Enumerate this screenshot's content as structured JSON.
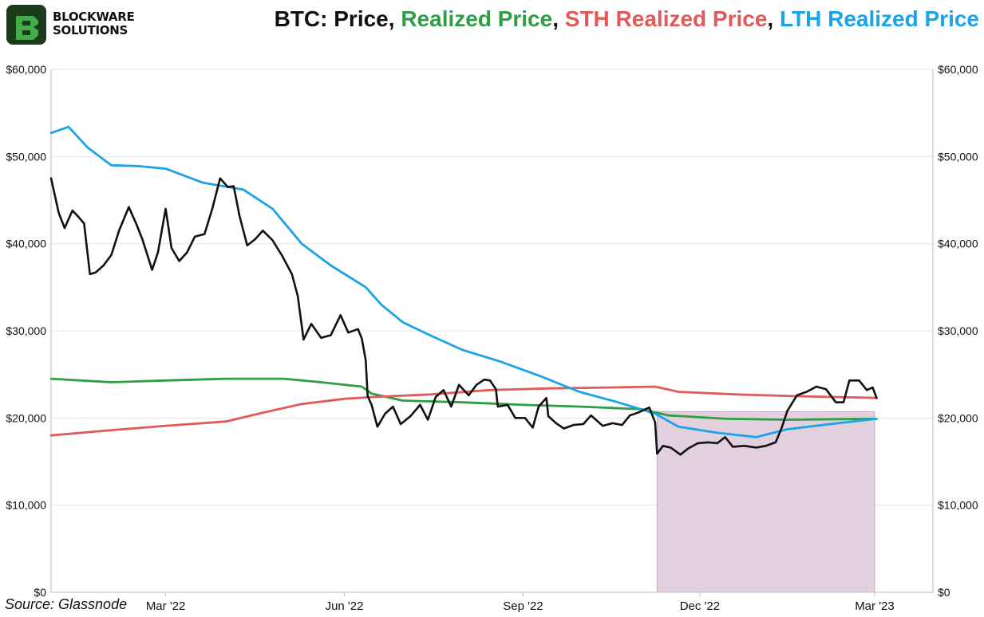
{
  "brand": {
    "line1": "BLOCKWARE",
    "line2": "SOLUTIONS",
    "colors": {
      "logo_dark": "#1c3a1c",
      "logo_green": "#3fae49"
    }
  },
  "title": {
    "segments": [
      {
        "text": "BTC: Price",
        "color": "#111111"
      },
      {
        "text": ", ",
        "color": "#111111"
      },
      {
        "text": "Realized Price",
        "color": "#2e9e45"
      },
      {
        "text": ", ",
        "color": "#111111"
      },
      {
        "text": "STH Realized Price",
        "color": "#e05a5a"
      },
      {
        "text": ", ",
        "color": "#111111"
      },
      {
        "text": "LTH Realized Price",
        "color": "#1aa3e8"
      }
    ]
  },
  "source": "Source: Glassnode",
  "chart_data": {
    "type": "line",
    "grid": true,
    "y_axis": {
      "ticks": [
        0,
        10000,
        20000,
        30000,
        40000,
        50000,
        60000
      ],
      "tick_labels": [
        "$0",
        "$10,000",
        "$20,000",
        "$30,000",
        "$40,000",
        "$50,000",
        "$60,000"
      ],
      "ylim": [
        0,
        60000
      ],
      "mirrored_right": true
    },
    "x_axis": {
      "range": [
        "2022-01-01",
        "2023-03-31"
      ],
      "ticks": [
        "2022-03-01",
        "2022-06-01",
        "2022-09-01",
        "2022-12-01",
        "2023-03-01"
      ],
      "tick_labels": [
        "Mar '22",
        "Jun '22",
        "Sep '22",
        "Dec '22",
        "Mar '23"
      ]
    },
    "shaded_region": {
      "x": [
        "2022-11-09",
        "2023-03-01"
      ],
      "color": "#e2d0de",
      "edge": "#c7a9c2"
    },
    "series": [
      {
        "name": "Price",
        "color": "#111111",
        "points": [
          [
            "2022-01-01",
            47500
          ],
          [
            "2022-01-05",
            43500
          ],
          [
            "2022-01-08",
            41800
          ],
          [
            "2022-01-12",
            43800
          ],
          [
            "2022-01-15",
            43100
          ],
          [
            "2022-01-18",
            42300
          ],
          [
            "2022-01-21",
            36500
          ],
          [
            "2022-01-24",
            36700
          ],
          [
            "2022-01-28",
            37500
          ],
          [
            "2022-02-01",
            38700
          ],
          [
            "2022-02-05",
            41500
          ],
          [
            "2022-02-10",
            44200
          ],
          [
            "2022-02-14",
            42200
          ],
          [
            "2022-02-17",
            40500
          ],
          [
            "2022-02-22",
            37000
          ],
          [
            "2022-02-25",
            39000
          ],
          [
            "2022-03-01",
            44000
          ],
          [
            "2022-03-04",
            39500
          ],
          [
            "2022-03-08",
            38000
          ],
          [
            "2022-03-12",
            39000
          ],
          [
            "2022-03-16",
            40800
          ],
          [
            "2022-03-21",
            41100
          ],
          [
            "2022-03-25",
            44000
          ],
          [
            "2022-03-29",
            47500
          ],
          [
            "2022-04-02",
            46500
          ],
          [
            "2022-04-05",
            46600
          ],
          [
            "2022-04-08",
            43200
          ],
          [
            "2022-04-12",
            39800
          ],
          [
            "2022-04-16",
            40500
          ],
          [
            "2022-04-20",
            41500
          ],
          [
            "2022-04-25",
            40400
          ],
          [
            "2022-04-30",
            38600
          ],
          [
            "2022-05-05",
            36500
          ],
          [
            "2022-05-08",
            34000
          ],
          [
            "2022-05-11",
            29000
          ],
          [
            "2022-05-15",
            30800
          ],
          [
            "2022-05-20",
            29200
          ],
          [
            "2022-05-25",
            29500
          ],
          [
            "2022-05-30",
            31800
          ],
          [
            "2022-06-03",
            29800
          ],
          [
            "2022-06-08",
            30200
          ],
          [
            "2022-06-10",
            29100
          ],
          [
            "2022-06-12",
            26600
          ],
          [
            "2022-06-13",
            22500
          ],
          [
            "2022-06-15",
            21500
          ],
          [
            "2022-06-18",
            19000
          ],
          [
            "2022-06-22",
            20500
          ],
          [
            "2022-06-26",
            21300
          ],
          [
            "2022-06-30",
            19300
          ],
          [
            "2022-07-05",
            20200
          ],
          [
            "2022-07-10",
            21500
          ],
          [
            "2022-07-14",
            19800
          ],
          [
            "2022-07-18",
            22400
          ],
          [
            "2022-07-22",
            23200
          ],
          [
            "2022-07-26",
            21300
          ],
          [
            "2022-07-30",
            23800
          ],
          [
            "2022-08-04",
            22600
          ],
          [
            "2022-08-08",
            23800
          ],
          [
            "2022-08-12",
            24400
          ],
          [
            "2022-08-15",
            24300
          ],
          [
            "2022-08-18",
            23300
          ],
          [
            "2022-08-19",
            21300
          ],
          [
            "2022-08-24",
            21500
          ],
          [
            "2022-08-28",
            20000
          ],
          [
            "2022-09-02",
            20000
          ],
          [
            "2022-09-06",
            18900
          ],
          [
            "2022-09-09",
            21300
          ],
          [
            "2022-09-13",
            22300
          ],
          [
            "2022-09-14",
            20200
          ],
          [
            "2022-09-18",
            19400
          ],
          [
            "2022-09-22",
            18800
          ],
          [
            "2022-09-27",
            19200
          ],
          [
            "2022-10-02",
            19300
          ],
          [
            "2022-10-06",
            20300
          ],
          [
            "2022-10-12",
            19100
          ],
          [
            "2022-10-17",
            19400
          ],
          [
            "2022-10-22",
            19200
          ],
          [
            "2022-10-26",
            20300
          ],
          [
            "2022-10-30",
            20600
          ],
          [
            "2022-11-05",
            21200
          ],
          [
            "2022-11-08",
            19500
          ],
          [
            "2022-11-09",
            15900
          ],
          [
            "2022-11-12",
            16800
          ],
          [
            "2022-11-16",
            16600
          ],
          [
            "2022-11-21",
            15800
          ],
          [
            "2022-11-25",
            16500
          ],
          [
            "2022-11-30",
            17100
          ],
          [
            "2022-12-05",
            17200
          ],
          [
            "2022-12-10",
            17100
          ],
          [
            "2022-12-14",
            17800
          ],
          [
            "2022-12-18",
            16700
          ],
          [
            "2022-12-24",
            16800
          ],
          [
            "2022-12-30",
            16600
          ],
          [
            "2023-01-04",
            16800
          ],
          [
            "2023-01-09",
            17200
          ],
          [
            "2023-01-12",
            18800
          ],
          [
            "2023-01-15",
            20800
          ],
          [
            "2023-01-20",
            22600
          ],
          [
            "2023-01-25",
            23000
          ],
          [
            "2023-01-30",
            23600
          ],
          [
            "2023-02-04",
            23300
          ],
          [
            "2023-02-09",
            21800
          ],
          [
            "2023-02-13",
            21800
          ],
          [
            "2023-02-16",
            24300
          ],
          [
            "2023-02-21",
            24300
          ],
          [
            "2023-02-25",
            23200
          ],
          [
            "2023-02-28",
            23500
          ],
          [
            "2023-03-02",
            22300
          ]
        ]
      },
      {
        "name": "Realized Price",
        "color": "#2e9e45",
        "points": [
          [
            "2022-01-01",
            24500
          ],
          [
            "2022-02-01",
            24100
          ],
          [
            "2022-03-01",
            24300
          ],
          [
            "2022-04-01",
            24500
          ],
          [
            "2022-05-01",
            24500
          ],
          [
            "2022-05-20",
            24100
          ],
          [
            "2022-06-10",
            23600
          ],
          [
            "2022-06-15",
            22800
          ],
          [
            "2022-07-01",
            22000
          ],
          [
            "2022-08-01",
            21800
          ],
          [
            "2022-09-01",
            21500
          ],
          [
            "2022-10-01",
            21300
          ],
          [
            "2022-11-01",
            21000
          ],
          [
            "2022-11-15",
            20300
          ],
          [
            "2022-12-15",
            19900
          ],
          [
            "2023-01-15",
            19800
          ],
          [
            "2023-03-01",
            19900
          ],
          [
            "2023-03-02",
            19900
          ]
        ]
      },
      {
        "name": "STH Realized Price",
        "color": "#e05a5a",
        "points": [
          [
            "2022-01-01",
            18000
          ],
          [
            "2022-02-01",
            18600
          ],
          [
            "2022-03-01",
            19100
          ],
          [
            "2022-04-01",
            19600
          ],
          [
            "2022-04-20",
            20600
          ],
          [
            "2022-05-10",
            21600
          ],
          [
            "2022-06-01",
            22200
          ],
          [
            "2022-06-15",
            22400
          ],
          [
            "2022-07-15",
            22700
          ],
          [
            "2022-08-15",
            23200
          ],
          [
            "2022-09-15",
            23400
          ],
          [
            "2022-10-15",
            23500
          ],
          [
            "2022-11-08",
            23600
          ],
          [
            "2022-11-20",
            23000
          ],
          [
            "2022-12-20",
            22700
          ],
          [
            "2023-01-20",
            22500
          ],
          [
            "2023-03-02",
            22300
          ]
        ]
      },
      {
        "name": "LTH Realized Price",
        "color": "#1aa3e8",
        "points": [
          [
            "2022-01-01",
            52700
          ],
          [
            "2022-01-10",
            53400
          ],
          [
            "2022-01-20",
            51000
          ],
          [
            "2022-02-01",
            49000
          ],
          [
            "2022-02-15",
            48900
          ],
          [
            "2022-03-01",
            48600
          ],
          [
            "2022-03-20",
            47000
          ],
          [
            "2022-04-10",
            46200
          ],
          [
            "2022-04-25",
            44000
          ],
          [
            "2022-05-10",
            40000
          ],
          [
            "2022-05-25",
            37500
          ],
          [
            "2022-06-12",
            35000
          ],
          [
            "2022-06-20",
            33000
          ],
          [
            "2022-07-01",
            31000
          ],
          [
            "2022-07-15",
            29500
          ],
          [
            "2022-08-01",
            27800
          ],
          [
            "2022-08-20",
            26500
          ],
          [
            "2022-09-10",
            24800
          ],
          [
            "2022-09-30",
            23000
          ],
          [
            "2022-10-20",
            21800
          ],
          [
            "2022-11-08",
            20500
          ],
          [
            "2022-11-20",
            19000
          ],
          [
            "2022-12-10",
            18300
          ],
          [
            "2022-12-30",
            17800
          ],
          [
            "2023-01-15",
            18700
          ],
          [
            "2023-02-10",
            19400
          ],
          [
            "2023-03-02",
            19900
          ]
        ]
      }
    ]
  }
}
